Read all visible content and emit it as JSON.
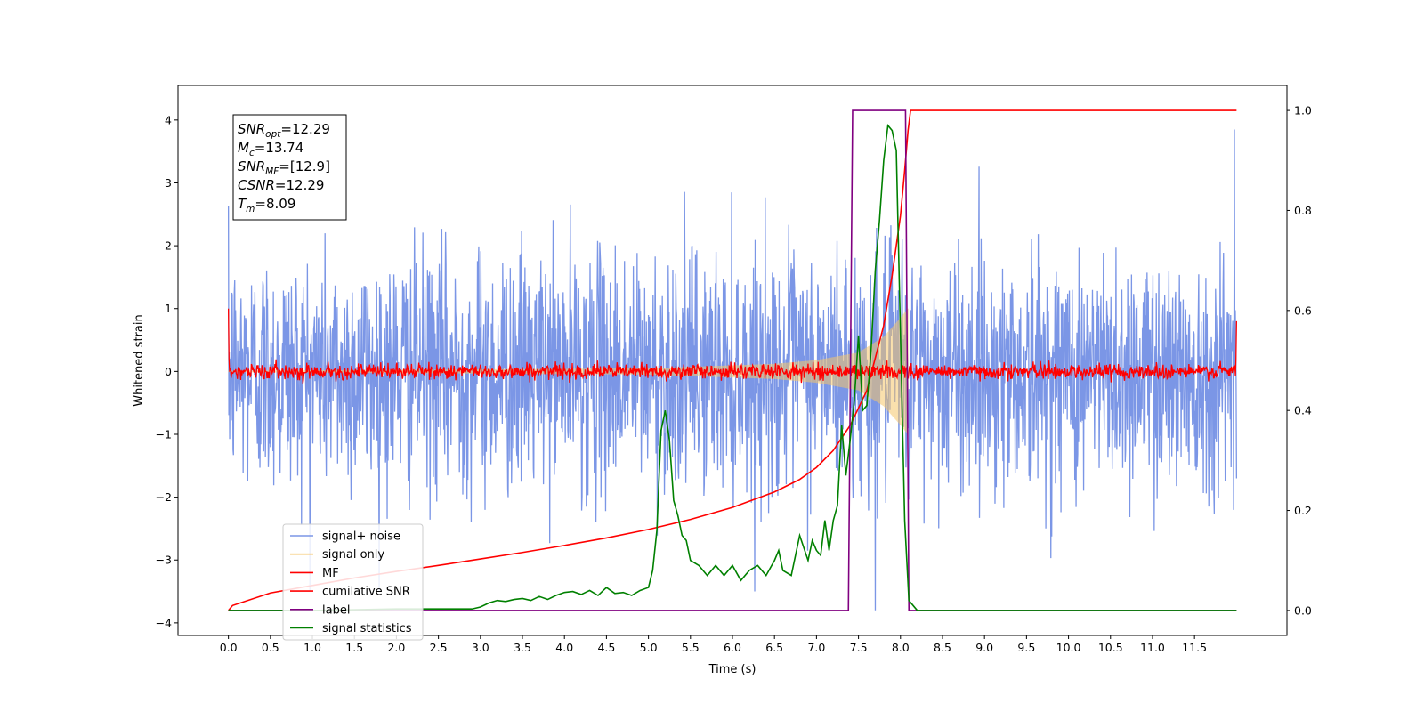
{
  "chart_data": {
    "type": "line",
    "title": "",
    "xlabel": "Time (s)",
    "ylabel": "Whitened strain",
    "xlim": [
      -0.6,
      12.6
    ],
    "ylim": [
      -4.2,
      4.55
    ],
    "y2lim": [
      -0.05,
      1.05
    ],
    "x_ticks": [
      0.0,
      0.5,
      1.0,
      1.5,
      2.0,
      2.5,
      3.0,
      3.5,
      4.0,
      4.5,
      5.0,
      5.5,
      6.0,
      6.5,
      7.0,
      7.5,
      8.0,
      8.5,
      9.0,
      9.5,
      10.0,
      10.5,
      11.0,
      11.5
    ],
    "x_tick_labels": [
      "0.0",
      "0.5",
      "1.0",
      "1.5",
      "2.0",
      "2.5",
      "3.0",
      "3.5",
      "4.0",
      "4.5",
      "5.0",
      "5.5",
      "6.0",
      "6.5",
      "7.0",
      "7.5",
      "8.0",
      "8.5",
      "9.0",
      "9.5",
      "10.0",
      "10.5",
      "11.0",
      "11.5"
    ],
    "y_ticks": [
      4,
      3,
      2,
      1,
      0,
      -1,
      -2,
      -3,
      -4
    ],
    "y_tick_labels": [
      "4",
      "3",
      "2",
      "1",
      "0",
      "−1",
      "−2",
      "−3",
      "−4"
    ],
    "y2_ticks": [
      1.0,
      0.8,
      0.6,
      0.4,
      0.2,
      0.0
    ],
    "y2_tick_labels": [
      "1.0",
      "0.8",
      "0.6",
      "0.4",
      "0.2",
      "0.0"
    ],
    "grid": false,
    "legend_position": "lower-left",
    "stats": [
      {
        "symbol": "SNR",
        "sub": "opt",
        "value": "=12.29"
      },
      {
        "symbol": "M",
        "sub": "c",
        "value": "=13.74"
      },
      {
        "symbol": "SNR",
        "sub": "MF",
        "value": "=[12.9]"
      },
      {
        "symbol": "CSNR",
        "sub": "",
        "value": "=12.29"
      },
      {
        "symbol": "T",
        "sub": "m",
        "value": "=8.09"
      }
    ],
    "series": [
      {
        "name": "signal+ noise",
        "color": "#7b96e6",
        "axis": "left",
        "kind": "noise",
        "x_range": [
          0.0,
          12.0
        ],
        "amplitude_std": 1.0,
        "extremes": {
          "max": 3.85,
          "min": -3.8
        }
      },
      {
        "name": "signal only",
        "color": "#f5c66a",
        "axis": "left",
        "kind": "chirp",
        "x_range": [
          0.0,
          8.09
        ],
        "envelope": [
          [
            0.0,
            0.01
          ],
          [
            5.0,
            0.05
          ],
          [
            6.5,
            0.12
          ],
          [
            7.0,
            0.18
          ],
          [
            7.5,
            0.3
          ],
          [
            7.8,
            0.55
          ],
          [
            8.0,
            0.85
          ],
          [
            8.09,
            1.0
          ]
        ]
      },
      {
        "name": "MF",
        "color": "#ff0000",
        "axis": "left",
        "kind": "mf",
        "x_range": [
          0.0,
          12.0
        ],
        "start_value": 1.0,
        "end_value": 0.8,
        "std": 0.06
      },
      {
        "name": "cumilative SNR",
        "color": "#ff0000",
        "axis": "right",
        "x": [
          0.0,
          0.05,
          0.5,
          1.0,
          1.5,
          2.0,
          2.5,
          3.0,
          3.5,
          4.0,
          4.5,
          5.0,
          5.5,
          6.0,
          6.5,
          6.8,
          7.0,
          7.2,
          7.4,
          7.6,
          7.8,
          7.9,
          8.0,
          8.05,
          8.09,
          8.12,
          12.0
        ],
        "values": [
          0.0,
          0.01,
          0.035,
          0.05,
          0.065,
          0.078,
          0.09,
          0.103,
          0.116,
          0.13,
          0.145,
          0.162,
          0.182,
          0.206,
          0.237,
          0.262,
          0.286,
          0.32,
          0.37,
          0.44,
          0.57,
          0.67,
          0.79,
          0.88,
          0.96,
          1.0,
          1.0
        ]
      },
      {
        "name": "label",
        "color": "#800080",
        "axis": "right",
        "x": [
          0.0,
          7.38,
          7.43,
          8.06,
          8.1,
          12.0
        ],
        "values": [
          0.0,
          0.0,
          1.0,
          1.0,
          0.0,
          0.0
        ]
      },
      {
        "name": "signal statistics",
        "color": "#008000",
        "axis": "right",
        "x": [
          0.0,
          1.0,
          2.0,
          2.9,
          3.0,
          3.1,
          3.2,
          3.3,
          3.4,
          3.5,
          3.6,
          3.7,
          3.8,
          3.9,
          4.0,
          4.1,
          4.2,
          4.3,
          4.4,
          4.5,
          4.6,
          4.7,
          4.8,
          4.9,
          5.0,
          5.05,
          5.1,
          5.15,
          5.2,
          5.25,
          5.3,
          5.35,
          5.4,
          5.45,
          5.5,
          5.6,
          5.7,
          5.8,
          5.9,
          6.0,
          6.1,
          6.2,
          6.3,
          6.4,
          6.5,
          6.55,
          6.6,
          6.7,
          6.8,
          6.9,
          6.95,
          7.0,
          7.05,
          7.1,
          7.15,
          7.2,
          7.25,
          7.3,
          7.35,
          7.4,
          7.45,
          7.5,
          7.55,
          7.6,
          7.65,
          7.7,
          7.75,
          7.8,
          7.85,
          7.9,
          7.95,
          8.0,
          8.05,
          8.1,
          8.2,
          12.0
        ],
        "values": [
          0.0,
          0.0,
          0.003,
          0.003,
          0.007,
          0.015,
          0.02,
          0.018,
          0.022,
          0.024,
          0.02,
          0.028,
          0.022,
          0.03,
          0.036,
          0.038,
          0.032,
          0.04,
          0.03,
          0.046,
          0.034,
          0.036,
          0.03,
          0.04,
          0.046,
          0.08,
          0.16,
          0.36,
          0.4,
          0.34,
          0.22,
          0.19,
          0.15,
          0.14,
          0.1,
          0.09,
          0.07,
          0.09,
          0.07,
          0.09,
          0.06,
          0.08,
          0.09,
          0.07,
          0.1,
          0.12,
          0.08,
          0.07,
          0.15,
          0.1,
          0.14,
          0.12,
          0.11,
          0.18,
          0.12,
          0.18,
          0.21,
          0.37,
          0.27,
          0.34,
          0.42,
          0.55,
          0.4,
          0.41,
          0.52,
          0.68,
          0.78,
          0.9,
          0.97,
          0.96,
          0.92,
          0.55,
          0.18,
          0.02,
          0.0,
          0.0
        ]
      }
    ]
  }
}
